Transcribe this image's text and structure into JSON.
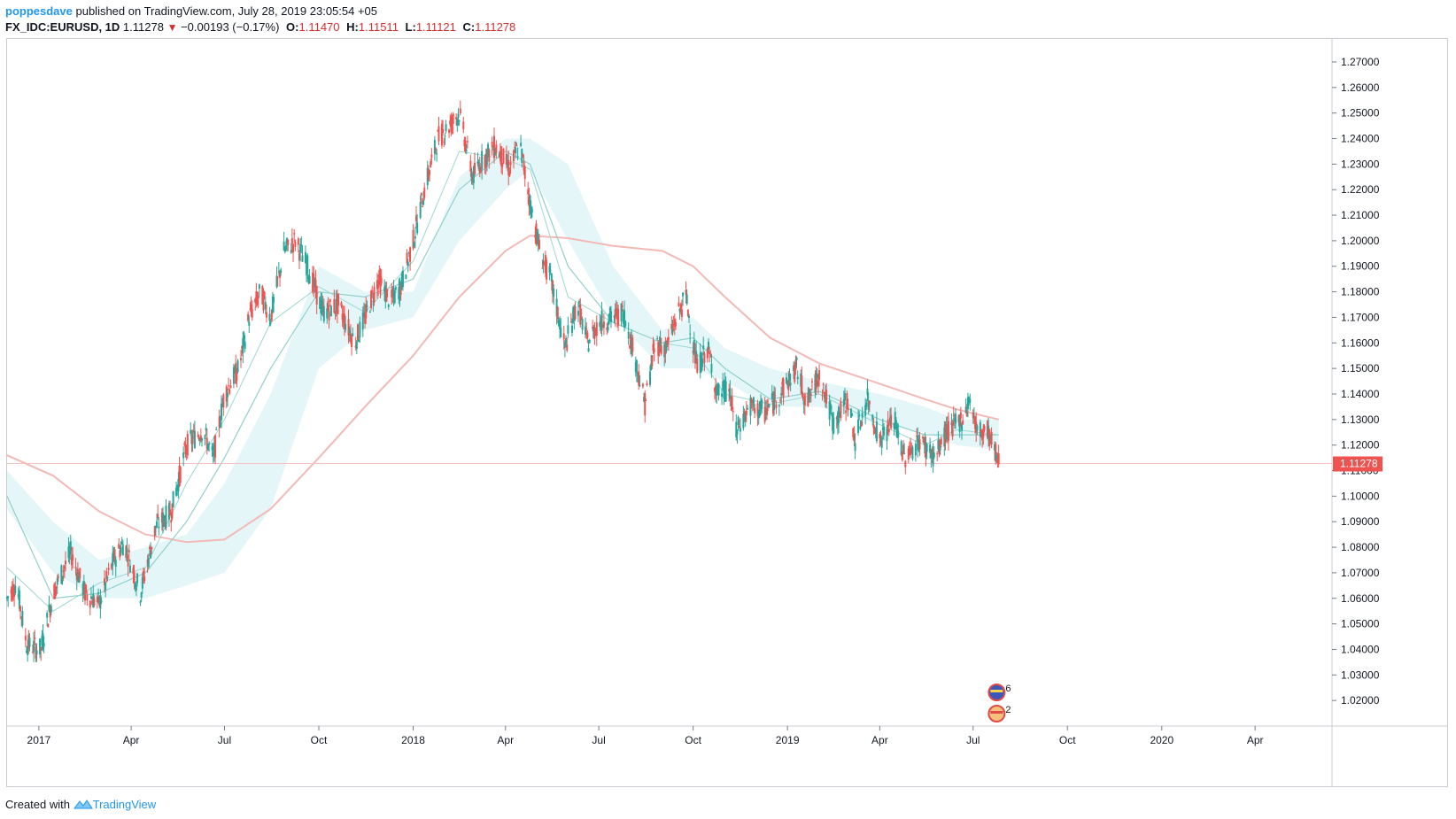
{
  "header": {
    "author": "poppesdave",
    "published_text": "published on TradingView.com, July 28, 2019 23:05:54 +05"
  },
  "symbol": {
    "name": "FX_IDC:EURUSD, 1D",
    "last": "1.11278",
    "change_icon": "down-triangle-icon",
    "change": "−0.00193 (−0.17%)",
    "open_label": "O:",
    "open": "1.11470",
    "high_label": "H:",
    "high": "1.11511",
    "low_label": "L:",
    "low": "1.11121",
    "close_label": "C:",
    "close": "1.11278"
  },
  "footer": {
    "created_with": "Created with",
    "logo_icon": "tradingview-logo-icon",
    "brand": "TradingView"
  },
  "colors": {
    "up": "#26a69a",
    "down": "#ef5350",
    "cloud": "#e0f4f8",
    "ma_long": "#f3b9b5",
    "ma_mid": "#8fd1cb",
    "ma_short": "#9bd8d2",
    "price_line": "#f5c4c0",
    "price_label_bg": "#ef5350"
  },
  "chart_data": {
    "type": "candlestick",
    "symbol": "FX_IDC:EURUSD",
    "interval": "1D",
    "ylim": [
      1.01,
      1.279
    ],
    "y_ticks": [
      "1.27000",
      "1.26000",
      "1.25000",
      "1.24000",
      "1.23000",
      "1.22000",
      "1.21000",
      "1.20000",
      "1.19000",
      "1.18000",
      "1.17000",
      "1.16000",
      "1.15000",
      "1.14000",
      "1.13000",
      "1.12000",
      "1.11000",
      "1.10000",
      "1.09000",
      "1.08000",
      "1.07000",
      "1.06000",
      "1.05000",
      "1.04000",
      "1.03000",
      "1.02000"
    ],
    "x_range": [
      "2016-12-01",
      "2020-06-15"
    ],
    "x_ticks": [
      {
        "label": "2017",
        "date": "2017-01-01"
      },
      {
        "label": "Apr",
        "date": "2017-04-01"
      },
      {
        "label": "Jul",
        "date": "2017-07-01"
      },
      {
        "label": "Oct",
        "date": "2017-10-01"
      },
      {
        "label": "2018",
        "date": "2018-01-01"
      },
      {
        "label": "Apr",
        "date": "2018-04-01"
      },
      {
        "label": "Jul",
        "date": "2018-07-01"
      },
      {
        "label": "Oct",
        "date": "2018-10-01"
      },
      {
        "label": "2019",
        "date": "2019-01-01"
      },
      {
        "label": "Apr",
        "date": "2019-04-01"
      },
      {
        "label": "Jul",
        "date": "2019-07-01"
      },
      {
        "label": "Oct",
        "date": "2019-10-01"
      },
      {
        "label": "2020",
        "date": "2020-01-01"
      },
      {
        "label": "Apr",
        "date": "2020-04-01"
      }
    ],
    "price_path": [
      [
        "2016-12-01",
        1.06
      ],
      [
        "2016-12-10",
        1.066
      ],
      [
        "2016-12-20",
        1.042
      ],
      [
        "2017-01-03",
        1.04
      ],
      [
        "2017-01-15",
        1.062
      ],
      [
        "2017-02-01",
        1.078
      ],
      [
        "2017-02-15",
        1.062
      ],
      [
        "2017-03-01",
        1.058
      ],
      [
        "2017-03-15",
        1.075
      ],
      [
        "2017-03-25",
        1.082
      ],
      [
        "2017-04-10",
        1.062
      ],
      [
        "2017-04-25",
        1.088
      ],
      [
        "2017-05-10",
        1.094
      ],
      [
        "2017-05-25",
        1.12
      ],
      [
        "2017-06-10",
        1.126
      ],
      [
        "2017-06-20",
        1.115
      ],
      [
        "2017-07-01",
        1.14
      ],
      [
        "2017-07-15",
        1.15
      ],
      [
        "2017-07-25",
        1.17
      ],
      [
        "2017-08-05",
        1.18
      ],
      [
        "2017-08-15",
        1.17
      ],
      [
        "2017-08-28",
        1.196
      ],
      [
        "2017-09-08",
        1.2
      ],
      [
        "2017-09-20",
        1.19
      ],
      [
        "2017-10-05",
        1.172
      ],
      [
        "2017-10-20",
        1.175
      ],
      [
        "2017-11-05",
        1.16
      ],
      [
        "2017-11-15",
        1.17
      ],
      [
        "2017-11-28",
        1.185
      ],
      [
        "2017-12-10",
        1.176
      ],
      [
        "2017-12-20",
        1.182
      ],
      [
        "2018-01-01",
        1.2
      ],
      [
        "2018-01-12",
        1.22
      ],
      [
        "2018-01-25",
        1.24
      ],
      [
        "2018-02-05",
        1.245
      ],
      [
        "2018-02-15",
        1.25
      ],
      [
        "2018-02-28",
        1.225
      ],
      [
        "2018-03-10",
        1.232
      ],
      [
        "2018-03-22",
        1.237
      ],
      [
        "2018-04-05",
        1.228
      ],
      [
        "2018-04-15",
        1.238
      ],
      [
        "2018-04-25",
        1.215
      ],
      [
        "2018-05-05",
        1.195
      ],
      [
        "2018-05-15",
        1.185
      ],
      [
        "2018-05-29",
        1.158
      ],
      [
        "2018-06-10",
        1.176
      ],
      [
        "2018-06-20",
        1.16
      ],
      [
        "2018-07-01",
        1.168
      ],
      [
        "2018-07-15",
        1.17
      ],
      [
        "2018-07-25",
        1.172
      ],
      [
        "2018-08-05",
        1.155
      ],
      [
        "2018-08-15",
        1.136
      ],
      [
        "2018-08-25",
        1.16
      ],
      [
        "2018-09-05",
        1.158
      ],
      [
        "2018-09-15",
        1.17
      ],
      [
        "2018-09-24",
        1.178
      ],
      [
        "2018-10-05",
        1.15
      ],
      [
        "2018-10-15",
        1.158
      ],
      [
        "2018-10-25",
        1.14
      ],
      [
        "2018-11-05",
        1.142
      ],
      [
        "2018-11-12",
        1.125
      ],
      [
        "2018-11-25",
        1.135
      ],
      [
        "2018-12-10",
        1.133
      ],
      [
        "2018-12-25",
        1.14
      ],
      [
        "2019-01-10",
        1.15
      ],
      [
        "2019-01-20",
        1.136
      ],
      [
        "2019-02-01",
        1.148
      ],
      [
        "2019-02-15",
        1.128
      ],
      [
        "2019-03-01",
        1.138
      ],
      [
        "2019-03-08",
        1.122
      ],
      [
        "2019-03-20",
        1.138
      ],
      [
        "2019-04-01",
        1.122
      ],
      [
        "2019-04-15",
        1.13
      ],
      [
        "2019-04-25",
        1.115
      ],
      [
        "2019-05-10",
        1.122
      ],
      [
        "2019-05-25",
        1.115
      ],
      [
        "2019-06-05",
        1.125
      ],
      [
        "2019-06-20",
        1.13
      ],
      [
        "2019-06-28",
        1.138
      ],
      [
        "2019-07-05",
        1.125
      ],
      [
        "2019-07-15",
        1.126
      ],
      [
        "2019-07-26",
        1.113
      ]
    ],
    "sma_200": [
      [
        "2016-12-01",
        1.116
      ],
      [
        "2017-01-15",
        1.108
      ],
      [
        "2017-03-01",
        1.094
      ],
      [
        "2017-04-15",
        1.085
      ],
      [
        "2017-05-25",
        1.082
      ],
      [
        "2017-07-01",
        1.083
      ],
      [
        "2017-08-15",
        1.095
      ],
      [
        "2017-10-01",
        1.115
      ],
      [
        "2017-11-15",
        1.135
      ],
      [
        "2018-01-01",
        1.155
      ],
      [
        "2018-02-15",
        1.178
      ],
      [
        "2018-04-01",
        1.196
      ],
      [
        "2018-04-25",
        1.202
      ],
      [
        "2018-06-01",
        1.201
      ],
      [
        "2018-07-15",
        1.198
      ],
      [
        "2018-09-01",
        1.196
      ],
      [
        "2018-10-01",
        1.19
      ],
      [
        "2018-11-01",
        1.178
      ],
      [
        "2018-12-15",
        1.162
      ],
      [
        "2019-02-01",
        1.152
      ],
      [
        "2019-04-01",
        1.144
      ],
      [
        "2019-05-15",
        1.138
      ],
      [
        "2019-06-15",
        1.134
      ],
      [
        "2019-07-26",
        1.13
      ]
    ],
    "ma_mid": [
      [
        "2016-12-01",
        1.1
      ],
      [
        "2017-01-15",
        1.06
      ],
      [
        "2017-03-01",
        1.062
      ],
      [
        "2017-04-15",
        1.07
      ],
      [
        "2017-05-25",
        1.09
      ],
      [
        "2017-07-01",
        1.115
      ],
      [
        "2017-08-15",
        1.15
      ],
      [
        "2017-10-01",
        1.18
      ],
      [
        "2017-11-15",
        1.178
      ],
      [
        "2018-01-01",
        1.185
      ],
      [
        "2018-02-15",
        1.22
      ],
      [
        "2018-04-01",
        1.235
      ],
      [
        "2018-04-25",
        1.23
      ],
      [
        "2018-06-01",
        1.19
      ],
      [
        "2018-07-15",
        1.168
      ],
      [
        "2018-09-01",
        1.16
      ],
      [
        "2018-10-01",
        1.162
      ],
      [
        "2018-11-01",
        1.15
      ],
      [
        "2018-12-15",
        1.138
      ],
      [
        "2019-02-01",
        1.141
      ],
      [
        "2019-04-01",
        1.13
      ],
      [
        "2019-05-15",
        1.124
      ],
      [
        "2019-06-15",
        1.124
      ],
      [
        "2019-07-26",
        1.124
      ]
    ],
    "ma_short": [
      [
        "2016-12-01",
        1.072
      ],
      [
        "2017-01-15",
        1.055
      ],
      [
        "2017-03-01",
        1.066
      ],
      [
        "2017-04-15",
        1.072
      ],
      [
        "2017-05-25",
        1.105
      ],
      [
        "2017-07-01",
        1.13
      ],
      [
        "2017-08-15",
        1.168
      ],
      [
        "2017-10-01",
        1.182
      ],
      [
        "2017-11-15",
        1.172
      ],
      [
        "2018-01-01",
        1.192
      ],
      [
        "2018-02-15",
        1.235
      ],
      [
        "2018-04-01",
        1.232
      ],
      [
        "2018-04-25",
        1.228
      ],
      [
        "2018-06-01",
        1.178
      ],
      [
        "2018-07-15",
        1.168
      ],
      [
        "2018-09-01",
        1.16
      ],
      [
        "2018-10-01",
        1.158
      ],
      [
        "2018-11-01",
        1.14
      ],
      [
        "2018-12-15",
        1.136
      ],
      [
        "2019-02-01",
        1.14
      ],
      [
        "2019-04-01",
        1.128
      ],
      [
        "2019-05-15",
        1.12
      ],
      [
        "2019-06-15",
        1.126
      ],
      [
        "2019-07-26",
        1.124
      ]
    ],
    "cloud_upper": [
      [
        "2016-12-01",
        1.11
      ],
      [
        "2017-01-15",
        1.09
      ],
      [
        "2017-03-01",
        1.075
      ],
      [
        "2017-04-15",
        1.08
      ],
      [
        "2017-05-25",
        1.085
      ],
      [
        "2017-07-01",
        1.105
      ],
      [
        "2017-08-15",
        1.14
      ],
      [
        "2017-10-01",
        1.19
      ],
      [
        "2017-11-15",
        1.18
      ],
      [
        "2018-01-01",
        1.18
      ],
      [
        "2018-02-15",
        1.225
      ],
      [
        "2018-04-01",
        1.24
      ],
      [
        "2018-04-25",
        1.24
      ],
      [
        "2018-06-01",
        1.23
      ],
      [
        "2018-07-15",
        1.19
      ],
      [
        "2018-09-01",
        1.165
      ],
      [
        "2018-10-01",
        1.17
      ],
      [
        "2018-11-01",
        1.158
      ],
      [
        "2018-12-15",
        1.15
      ],
      [
        "2019-02-01",
        1.145
      ],
      [
        "2019-04-01",
        1.14
      ],
      [
        "2019-05-15",
        1.135
      ],
      [
        "2019-06-15",
        1.13
      ],
      [
        "2019-07-26",
        1.13
      ]
    ],
    "cloud_lower": [
      [
        "2016-12-01",
        1.095
      ],
      [
        "2017-01-15",
        1.07
      ],
      [
        "2017-03-01",
        1.06
      ],
      [
        "2017-04-15",
        1.06
      ],
      [
        "2017-05-25",
        1.065
      ],
      [
        "2017-07-01",
        1.07
      ],
      [
        "2017-08-15",
        1.095
      ],
      [
        "2017-10-01",
        1.15
      ],
      [
        "2017-11-15",
        1.165
      ],
      [
        "2018-01-01",
        1.17
      ],
      [
        "2018-02-15",
        1.2
      ],
      [
        "2018-04-01",
        1.22
      ],
      [
        "2018-04-25",
        1.228
      ],
      [
        "2018-06-01",
        1.2
      ],
      [
        "2018-07-15",
        1.17
      ],
      [
        "2018-09-01",
        1.15
      ],
      [
        "2018-10-01",
        1.15
      ],
      [
        "2018-11-01",
        1.145
      ],
      [
        "2018-12-15",
        1.135
      ],
      [
        "2019-02-01",
        1.135
      ],
      [
        "2019-04-01",
        1.128
      ],
      [
        "2019-05-15",
        1.125
      ],
      [
        "2019-06-15",
        1.12
      ],
      [
        "2019-07-26",
        1.118
      ]
    ],
    "last_price": 1.11278,
    "last_price_label": "1.11278",
    "candle_end": "2019-07-26",
    "events": [
      {
        "date": "2019-07-24",
        "count": "6",
        "icon": "eu-flag-icon"
      },
      {
        "date": "2019-07-24",
        "count": "2",
        "icon": "us-flag-icon"
      }
    ]
  }
}
